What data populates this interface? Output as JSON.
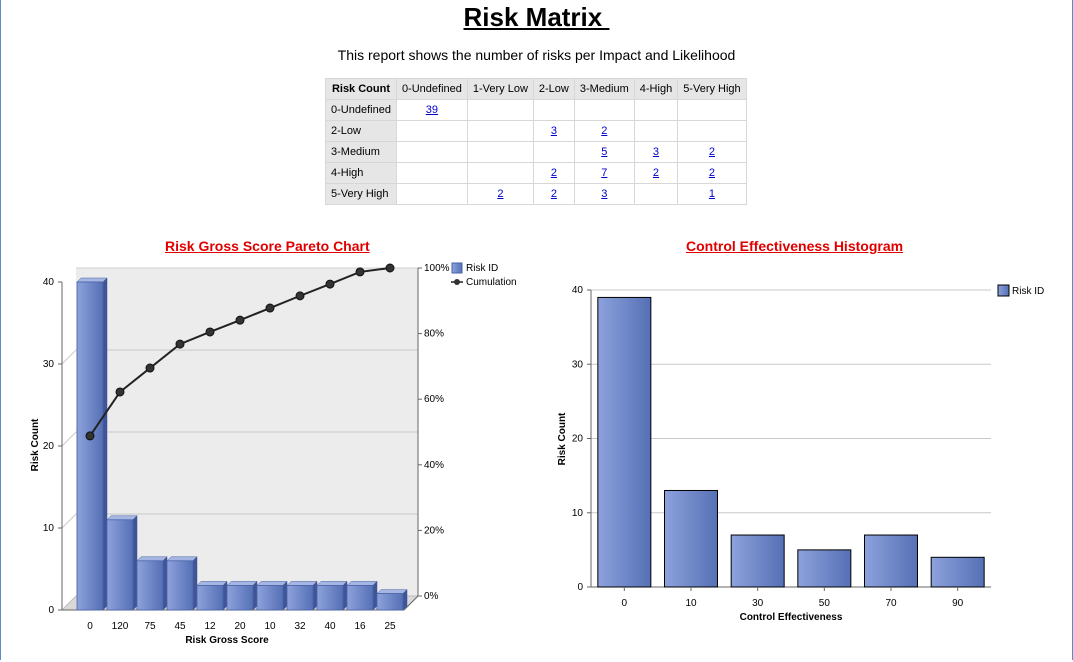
{
  "page": {
    "title": "Risk Matrix ",
    "subtitle": "This report shows the number of risks per Impact and Likelihood"
  },
  "matrix": {
    "corner": "Risk Count",
    "columns": [
      "0-Undefined",
      "1-Very Low",
      "2-Low",
      "3-Medium",
      "4-High",
      "5-Very High"
    ],
    "rows": [
      {
        "label": "0-Undefined",
        "cells": [
          "39",
          "",
          "",
          "",
          "",
          ""
        ]
      },
      {
        "label": "2-Low",
        "cells": [
          "",
          "",
          "3",
          "2",
          "",
          ""
        ]
      },
      {
        "label": "3-Medium",
        "cells": [
          "",
          "",
          "",
          "5",
          "3",
          "2"
        ]
      },
      {
        "label": "4-High",
        "cells": [
          "",
          "",
          "2",
          "7",
          "2",
          "2"
        ]
      },
      {
        "label": "5-Very High",
        "cells": [
          "",
          "2",
          "2",
          "3",
          "",
          "1"
        ]
      }
    ]
  },
  "colors": {
    "bar": "#6f88c8",
    "line": "#222222",
    "title": "#e00000"
  },
  "chart_data": [
    {
      "type": "bar",
      "title": "Risk Gross Score Pareto Chart",
      "xlabel": "Risk Gross Score",
      "ylabel": "Risk Count",
      "categories": [
        "0",
        "120",
        "75",
        "45",
        "12",
        "20",
        "10",
        "32",
        "40",
        "16",
        "25"
      ],
      "series": [
        {
          "name": "Risk ID",
          "values": [
            40,
            11,
            6,
            6,
            3,
            3,
            3,
            3,
            3,
            3,
            2
          ]
        },
        {
          "name": "Cumulation",
          "values": [
            48.8,
            62.2,
            69.5,
            76.8,
            80.5,
            84.1,
            87.8,
            91.5,
            95.1,
            98.8,
            100
          ]
        }
      ],
      "ylim": [
        0,
        40
      ],
      "yticks": [
        "0",
        "10",
        "20",
        "30",
        "40"
      ],
      "y2ticks": [
        "0%",
        "20%",
        "40%",
        "60%",
        "80%",
        "100%"
      ],
      "legend": "top-right",
      "grid": true
    },
    {
      "type": "bar",
      "title": "Control Effectiveness Histogram",
      "xlabel": "Control Effectiveness",
      "ylabel": "Risk Count",
      "categories": [
        "0",
        "10",
        "30",
        "50",
        "70",
        "90"
      ],
      "series": [
        {
          "name": "Risk ID",
          "values": [
            39,
            13,
            7,
            5,
            7,
            4
          ]
        }
      ],
      "ylim": [
        0,
        40
      ],
      "yticks": [
        "0",
        "10",
        "20",
        "30",
        "40"
      ],
      "legend": "top-right",
      "grid": true
    }
  ]
}
